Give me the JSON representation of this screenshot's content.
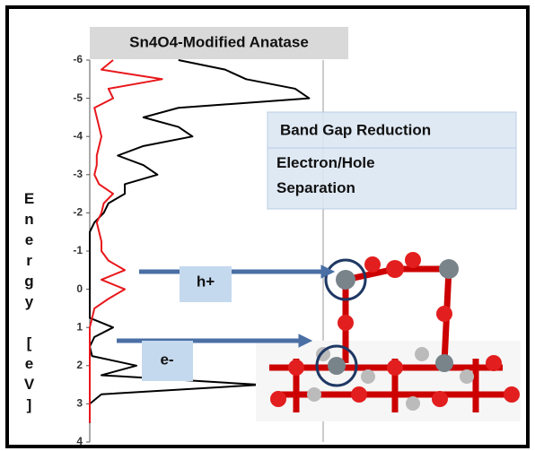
{
  "chart_data": {
    "type": "line",
    "title": "Sn4O4-Modified Anatase",
    "ylabel": "Energy [eV]",
    "y": [
      -6,
      -5.75,
      -5.5,
      -5.25,
      -5,
      -4.75,
      -4.5,
      -4.25,
      -4,
      -3.75,
      -3.5,
      -3.25,
      -3,
      -2.75,
      -2.5,
      -2.25,
      -2,
      -1.75,
      -1.5,
      -1.25,
      -1,
      -0.75,
      -0.5,
      -0.25,
      0,
      0.25,
      0.5,
      0.75,
      1,
      1.25,
      1.5,
      1.75,
      2,
      2.25,
      2.5,
      2.75,
      3,
      3.25,
      3.5
    ],
    "series": [
      {
        "color": "#000000",
        "values": [
          0.38,
          0.58,
          0.67,
          0.88,
          0.94,
          0.38,
          0.23,
          0.38,
          0.44,
          0.23,
          0.12,
          0.23,
          0.29,
          0.15,
          0.15,
          0.08,
          0.06,
          0.02,
          0,
          0,
          0,
          0,
          0,
          0,
          0,
          0,
          0,
          0,
          0.1,
          0.02,
          0,
          0.01,
          0.2,
          0.05,
          0.73,
          0.05,
          0,
          0,
          0
        ]
      },
      {
        "color": "#e8171b",
        "values": [
          0.1,
          0.05,
          0.31,
          0.08,
          0.1,
          0.02,
          0.03,
          0.04,
          0.05,
          0.04,
          0.03,
          0.03,
          0.02,
          0.04,
          0.1,
          0.06,
          0.05,
          0.03,
          0.04,
          0.05,
          0.05,
          0.08,
          0.15,
          0.05,
          0.15,
          0.08,
          0.02,
          0.01,
          0,
          0,
          0,
          0,
          0,
          0,
          0,
          0,
          0,
          0,
          0
        ]
      }
    ],
    "xlim": [
      0,
      1
    ],
    "ylim": [
      -6,
      4
    ],
    "yticks": [
      -6,
      -5,
      -4,
      -3,
      -2,
      -1,
      0,
      1,
      2,
      3,
      4
    ],
    "annotations": [
      "Band Gap Reduction",
      "Electron/Hole Separation",
      "h+",
      "e-"
    ]
  }
}
